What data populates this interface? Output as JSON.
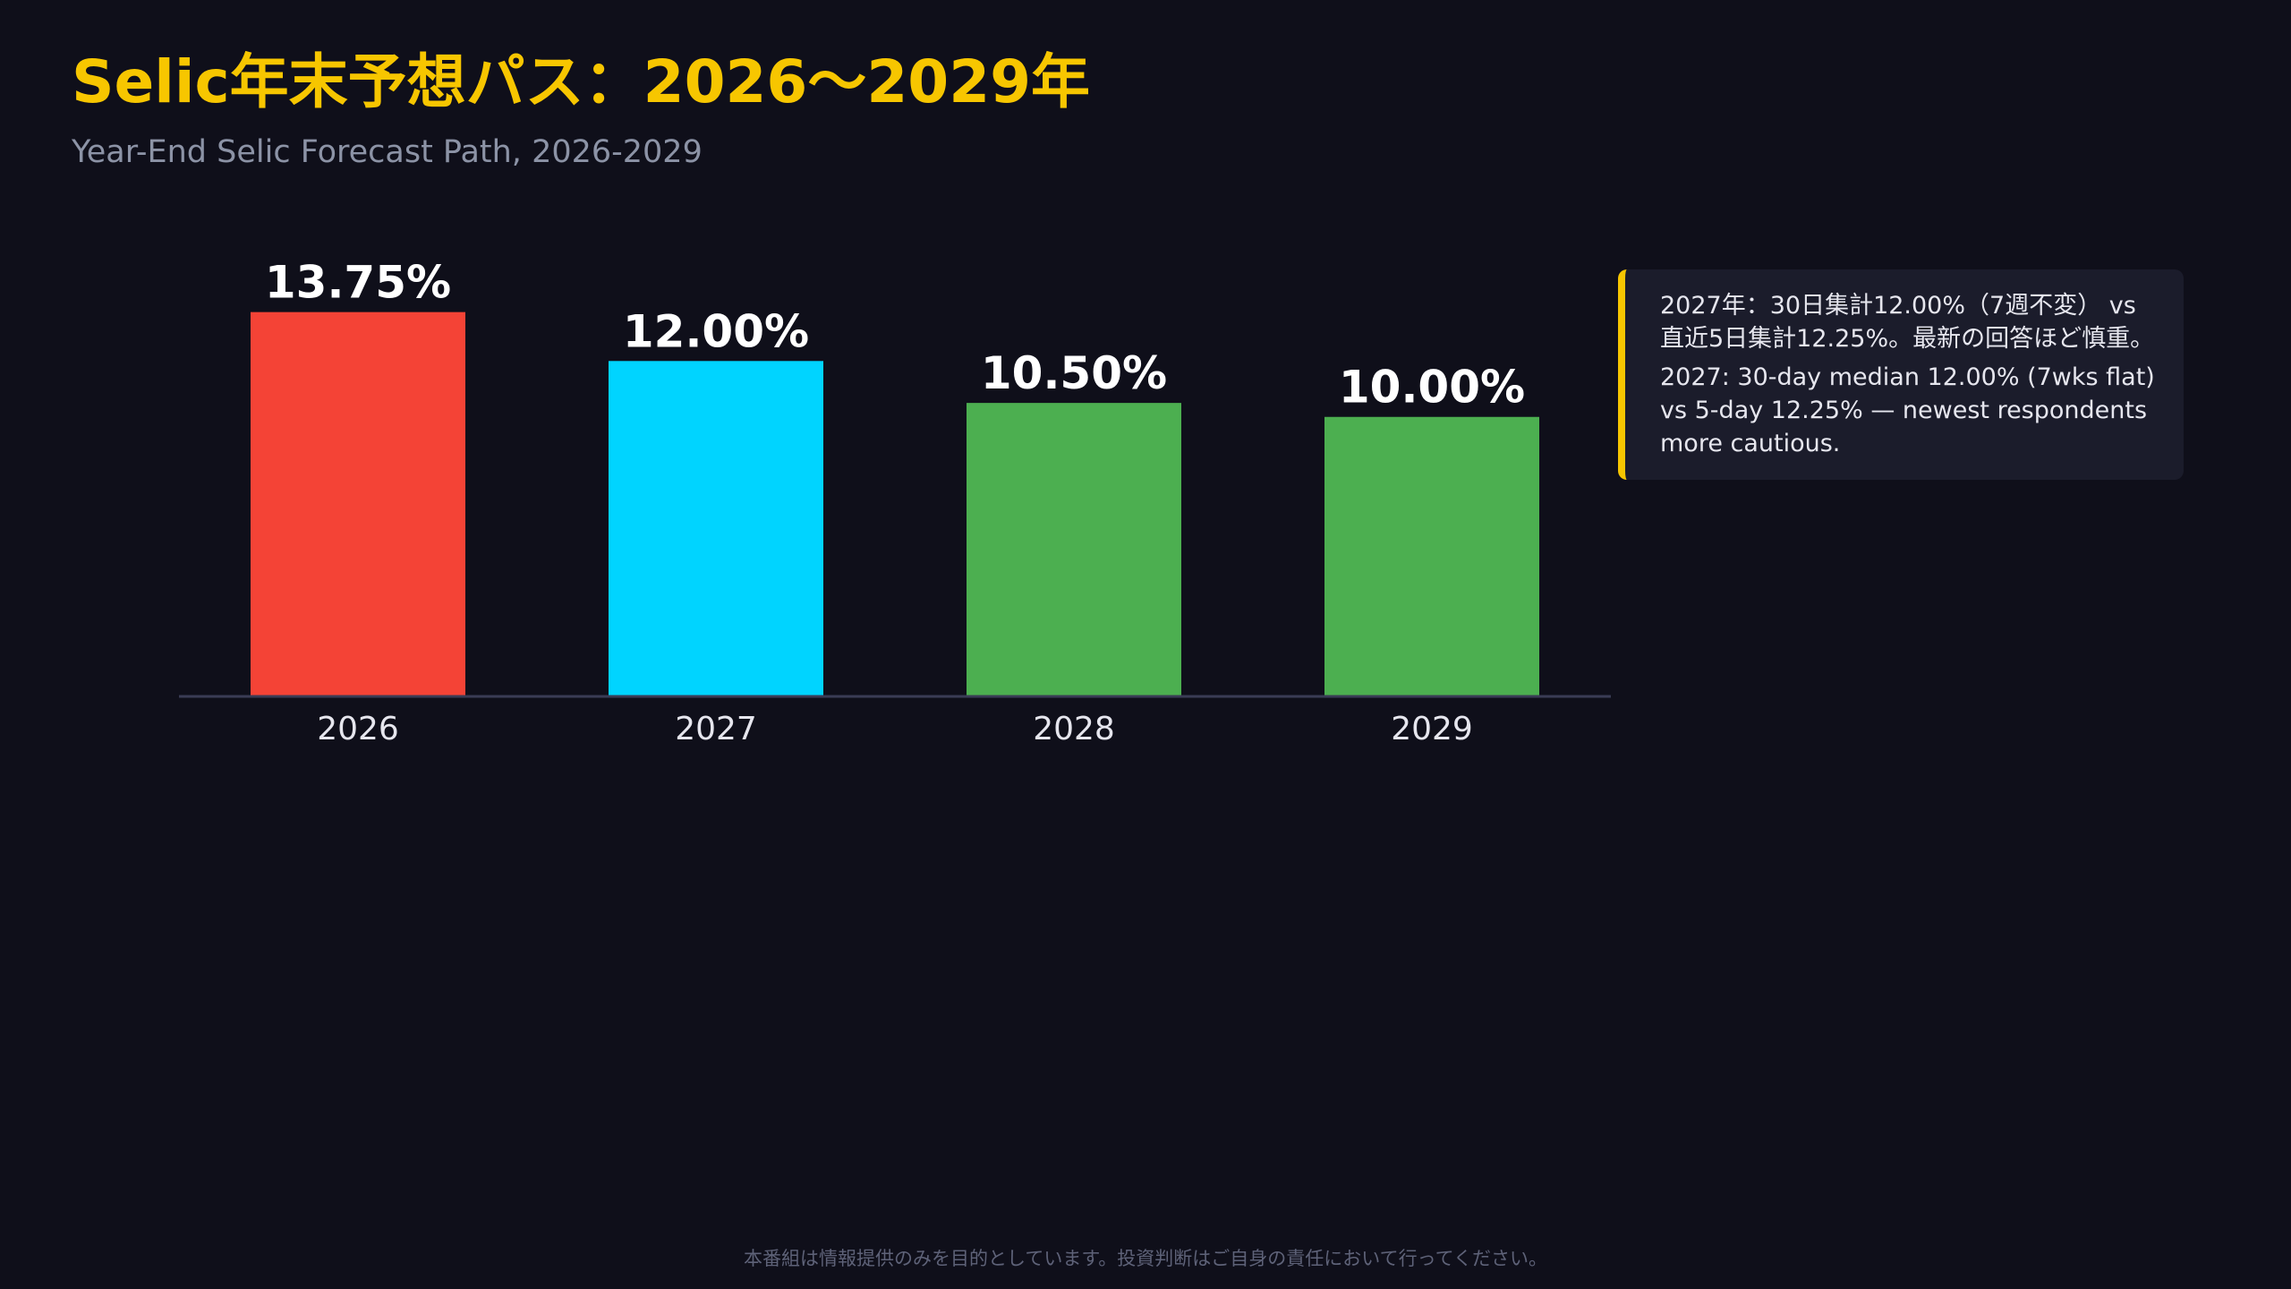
{
  "header": {
    "title": "Selic年末予想パス：2026〜2029年",
    "subtitle": "Year-End Selic Forecast Path, 2026-2029"
  },
  "chart_data": {
    "type": "bar",
    "categories": [
      "2026",
      "2027",
      "2028",
      "2029"
    ],
    "values": [
      13.75,
      12.0,
      10.5,
      10.0
    ],
    "data_labels": [
      "13.75%",
      "12.00%",
      "10.50%",
      "10.00%"
    ],
    "colors": [
      "#f44336",
      "#00d4ff",
      "#4caf50",
      "#4caf50"
    ],
    "title": "Selic年末予想パス：2026〜2029年",
    "subtitle": "Year-End Selic Forecast Path, 2026-2029",
    "ylim": [
      0,
      15
    ],
    "grid": false,
    "legend": "none"
  },
  "annotation": {
    "japanese": "2027年：30日集計12.00%（7週不変） vs 直近5日集計12.25%。最新の回答ほど慎重。",
    "english": "2027: 30-day median 12.00% (7wks flat) vs 5-day 12.25% — newest respondents more cautious."
  },
  "footer": {
    "disclaimer": "本番組は情報提供のみを目的としています。投資判断はご自身の責任において行ってください。"
  },
  "colors": {
    "background": "#0f0f1a",
    "accent": "#f7c600",
    "baseline": "#3a3c55"
  }
}
